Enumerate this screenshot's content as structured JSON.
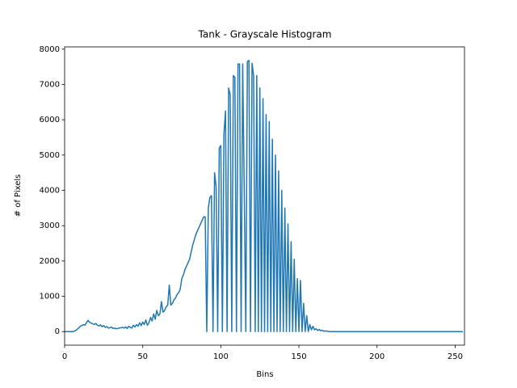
{
  "chart_data": {
    "type": "line",
    "title": "Tank - Grayscale Histogram",
    "x_label": "Bins",
    "y_label": "# of Pixels",
    "color": "#1f77b4",
    "x": [
      0,
      1,
      2,
      3,
      4,
      5,
      6,
      7,
      8,
      9,
      10,
      11,
      12,
      13,
      14,
      15,
      16,
      17,
      18,
      19,
      20,
      21,
      22,
      23,
      24,
      25,
      26,
      27,
      28,
      29,
      30,
      31,
      32,
      33,
      34,
      35,
      36,
      37,
      38,
      39,
      40,
      41,
      42,
      43,
      44,
      45,
      46,
      47,
      48,
      49,
      50,
      51,
      52,
      53,
      54,
      55,
      56,
      57,
      58,
      59,
      60,
      61,
      62,
      63,
      64,
      65,
      66,
      67,
      68,
      69,
      70,
      71,
      72,
      73,
      74,
      75,
      76,
      77,
      78,
      79,
      80,
      81,
      82,
      83,
      84,
      85,
      86,
      87,
      88,
      89,
      90,
      91,
      92,
      93,
      94,
      95,
      96,
      97,
      98,
      99,
      100,
      101,
      102,
      103,
      104,
      105,
      106,
      107,
      108,
      109,
      110,
      111,
      112,
      113,
      114,
      115,
      116,
      117,
      118,
      119,
      120,
      121,
      122,
      123,
      124,
      125,
      126,
      127,
      128,
      129,
      130,
      131,
      132,
      133,
      134,
      135,
      136,
      137,
      138,
      139,
      140,
      141,
      142,
      143,
      144,
      145,
      146,
      147,
      148,
      149,
      150,
      151,
      152,
      153,
      154,
      155,
      156,
      157,
      158,
      159,
      160,
      161,
      162,
      163,
      164,
      165,
      166,
      167,
      168,
      169,
      170,
      171,
      172,
      173,
      174,
      175,
      176,
      177,
      178,
      179,
      180,
      181,
      182,
      183,
      184,
      185,
      186,
      187,
      188,
      189,
      190,
      191,
      192,
      193,
      194,
      195,
      196,
      197,
      198,
      199,
      200,
      201,
      202,
      203,
      204,
      205,
      206,
      207,
      208,
      209,
      210,
      211,
      212,
      213,
      214,
      215,
      216,
      217,
      218,
      219,
      220,
      221,
      222,
      223,
      224,
      225,
      226,
      227,
      228,
      229,
      230,
      231,
      232,
      233,
      234,
      235,
      236,
      237,
      238,
      239,
      240,
      241,
      242,
      243,
      244,
      245,
      246,
      247,
      248,
      249,
      250,
      251,
      252,
      253,
      254,
      255
    ],
    "values": [
      0,
      0,
      0,
      0,
      0,
      0,
      10,
      30,
      60,
      100,
      150,
      170,
      200,
      180,
      250,
      320,
      260,
      240,
      220,
      200,
      230,
      180,
      160,
      190,
      140,
      170,
      120,
      140,
      100,
      110,
      130,
      90,
      100,
      80,
      90,
      100,
      110,
      120,
      100,
      130,
      90,
      150,
      120,
      100,
      180,
      130,
      200,
      150,
      250,
      170,
      270,
      200,
      330,
      180,
      250,
      400,
      300,
      500,
      350,
      600,
      450,
      500,
      850,
      550,
      600,
      700,
      750,
      1320,
      750,
      800,
      900,
      950,
      1050,
      1100,
      1200,
      1500,
      1600,
      1750,
      1850,
      1950,
      2050,
      2250,
      2450,
      2600,
      2750,
      2850,
      2950,
      3050,
      3150,
      3250,
      3250,
      0,
      3500,
      3800,
      3850,
      0,
      4500,
      4100,
      0,
      5200,
      5270,
      0,
      5600,
      6250,
      0,
      6900,
      6700,
      0,
      7250,
      7200,
      0,
      7580,
      7580,
      0,
      7580,
      4000,
      0,
      7650,
      7680,
      0,
      7600,
      7250,
      0,
      7250,
      0,
      6900,
      0,
      6600,
      0,
      6150,
      0,
      5950,
      0,
      5450,
      0,
      5000,
      0,
      4550,
      0,
      4000,
      0,
      3500,
      0,
      3050,
      0,
      2550,
      0,
      2050,
      0,
      1500,
      0,
      1450,
      0,
      800,
      0,
      450,
      0,
      200,
      50,
      150,
      50,
      80,
      30,
      60,
      20,
      40,
      10,
      20,
      10,
      5,
      0,
      0,
      0,
      0,
      0,
      0,
      0,
      0,
      0,
      0,
      0,
      0,
      0,
      0,
      0,
      0,
      0,
      0,
      0,
      0,
      0,
      0,
      0,
      0,
      0,
      0,
      0,
      0,
      0,
      0,
      0,
      0,
      0,
      0,
      0,
      0,
      0,
      0,
      0,
      0,
      0,
      0,
      0,
      0,
      0,
      0,
      0,
      0,
      0,
      0,
      0,
      0,
      0,
      0,
      0,
      0,
      0,
      0,
      0,
      0,
      0,
      0,
      0,
      0,
      0,
      0,
      0,
      0,
      0,
      0,
      0,
      0,
      0,
      0,
      0,
      0,
      0,
      0,
      0,
      0,
      0,
      0,
      0,
      0,
      0,
      0
    ],
    "xlim": [
      0,
      256
    ],
    "ylim": [
      -384,
      8064
    ],
    "xticks": [
      0,
      50,
      100,
      150,
      200,
      250
    ],
    "yticks": [
      0,
      1000,
      2000,
      3000,
      4000,
      5000,
      6000,
      7000,
      8000
    ]
  }
}
